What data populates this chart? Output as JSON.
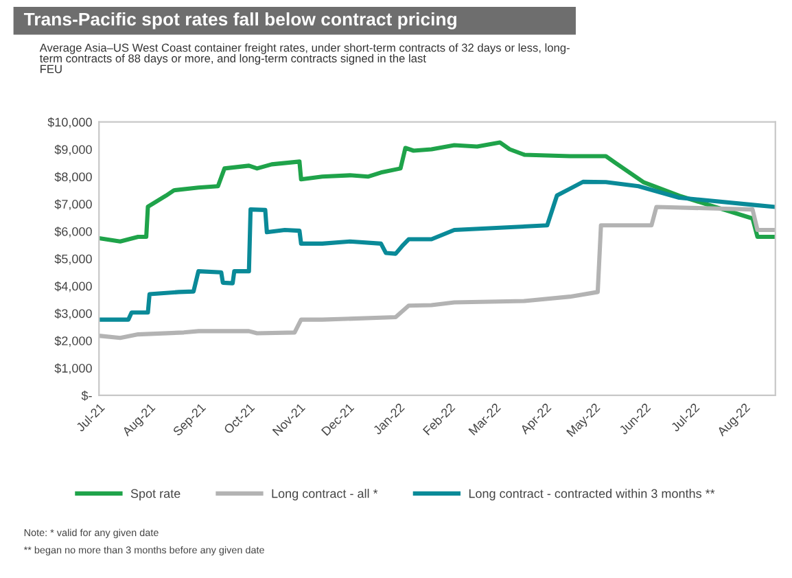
{
  "chart_data": {
    "type": "line",
    "title": "Trans-Pacific spot rates fall below contract pricing",
    "subtitle": "Average Asia–US West Coast container freight rates, under short-term contracts of 32 days or less, long-\nterm contracts of 88 days or more, and long-term contracts signed in the last\nFEU",
    "annotations": [
      "Note: * valid for any given date",
      "** began no more than 3 months before any given date"
    ],
    "legend": "bottom",
    "grid": false,
    "xlim": [
      "2021-07-01",
      "2022-08-20"
    ],
    "xticks": [
      {
        "value": "2021-07-01",
        "label": "Jul-21"
      },
      {
        "value": "2021-08-01",
        "label": "Aug-21"
      },
      {
        "value": "2021-09-01",
        "label": "Sep-21"
      },
      {
        "value": "2021-10-01",
        "label": "Oct-21"
      },
      {
        "value": "2021-11-01",
        "label": "Nov-21"
      },
      {
        "value": "2021-12-01",
        "label": "Dec-21"
      },
      {
        "value": "2022-01-01",
        "label": "Jan-22"
      },
      {
        "value": "2022-02-01",
        "label": "Feb-22"
      },
      {
        "value": "2022-03-01",
        "label": "Mar-22"
      },
      {
        "value": "2022-04-01",
        "label": "Apr-22"
      },
      {
        "value": "2022-05-01",
        "label": "May-22"
      },
      {
        "value": "2022-06-01",
        "label": "Jun-22"
      },
      {
        "value": "2022-07-01",
        "label": "Jul-22"
      },
      {
        "value": "2022-08-01",
        "label": "Aug-22"
      }
    ],
    "ylim": [
      0,
      10000
    ],
    "yticks": [
      {
        "value": 0,
        "label": "$-"
      },
      {
        "value": 1000,
        "label": "$1,000"
      },
      {
        "value": 2000,
        "label": "$2,000"
      },
      {
        "value": 3000,
        "label": "$3,000"
      },
      {
        "value": 4000,
        "label": "$4,000"
      },
      {
        "value": 5000,
        "label": "$5,000"
      },
      {
        "value": 6000,
        "label": "$6,000"
      },
      {
        "value": 7000,
        "label": "$7,000"
      },
      {
        "value": 8000,
        "label": "$8,000"
      },
      {
        "value": 9000,
        "label": "$9,000"
      },
      {
        "value": 10000,
        "label": "$10,000"
      }
    ],
    "series": [
      {
        "name": "Spot rate",
        "color": "#1fa34a",
        "x": [
          "2021-07-01",
          "2021-07-14",
          "2021-07-25",
          "2021-07-30",
          "2021-07-31",
          "2021-08-11",
          "2021-08-16",
          "2021-08-31",
          "2021-09-12",
          "2021-09-16",
          "2021-10-01",
          "2021-10-06",
          "2021-10-15",
          "2021-11-01",
          "2021-11-02",
          "2021-11-15",
          "2021-12-02",
          "2021-12-13",
          "2021-12-21",
          "2022-01-02",
          "2022-01-05",
          "2022-01-10",
          "2022-01-21",
          "2022-02-04",
          "2022-02-18",
          "2022-03-04",
          "2022-03-10",
          "2022-03-19",
          "2022-04-16",
          "2022-05-08",
          "2022-05-14",
          "2022-05-31",
          "2022-06-22",
          "2022-08-06",
          "2022-08-09",
          "2022-08-20"
        ],
        "values": [
          5750,
          5630,
          5800,
          5800,
          6900,
          7300,
          7500,
          7600,
          7650,
          8300,
          8400,
          8300,
          8450,
          8550,
          7900,
          8000,
          8050,
          8000,
          8150,
          8300,
          9050,
          8950,
          9000,
          9150,
          9100,
          9250,
          9000,
          8800,
          8750,
          8750,
          8500,
          7800,
          7300,
          6470,
          5800,
          5800
        ]
      },
      {
        "name": "Long contract - all *",
        "color": "#b3b3b3",
        "x": [
          "2021-07-01",
          "2021-07-14",
          "2021-07-25",
          "2021-08-22",
          "2021-08-31",
          "2021-10-01",
          "2021-10-06",
          "2021-10-29",
          "2021-11-02",
          "2021-11-15",
          "2021-12-30",
          "2022-01-07",
          "2022-01-21",
          "2022-02-04",
          "2022-03-19",
          "2022-04-16",
          "2022-05-03",
          "2022-05-05",
          "2022-06-05",
          "2022-06-08",
          "2022-08-06",
          "2022-08-09",
          "2022-08-20"
        ],
        "values": [
          2180,
          2100,
          2230,
          2300,
          2350,
          2350,
          2270,
          2300,
          2770,
          2770,
          2860,
          3280,
          3300,
          3400,
          3450,
          3610,
          3780,
          6220,
          6220,
          6890,
          6800,
          6050,
          6050
        ]
      },
      {
        "name": "Long contract - contracted within 3 months **",
        "color": "#0a8a98",
        "x": [
          "2021-07-01",
          "2021-07-19",
          "2021-07-21",
          "2021-07-31",
          "2021-08-01",
          "2021-08-19",
          "2021-08-28",
          "2021-08-31",
          "2021-09-14",
          "2021-09-15",
          "2021-09-21",
          "2021-09-22",
          "2021-10-01",
          "2021-10-02",
          "2021-10-11",
          "2021-10-12",
          "2021-10-23",
          "2021-11-01",
          "2021-11-02",
          "2021-11-15",
          "2021-12-02",
          "2021-12-21",
          "2021-12-24",
          "2021-12-30",
          "2022-01-03",
          "2022-01-07",
          "2022-01-21",
          "2022-02-04",
          "2022-03-04",
          "2022-04-02",
          "2022-04-08",
          "2022-04-16",
          "2022-04-24",
          "2022-05-08",
          "2022-05-28",
          "2022-06-22",
          "2022-08-06",
          "2022-08-20"
        ],
        "values": [
          2770,
          2770,
          3030,
          3030,
          3700,
          3780,
          3800,
          4540,
          4500,
          4120,
          4100,
          4540,
          4540,
          6800,
          6780,
          5970,
          6050,
          6020,
          5550,
          5550,
          5630,
          5550,
          5210,
          5180,
          5460,
          5710,
          5710,
          6050,
          6130,
          6220,
          7310,
          7560,
          7810,
          7800,
          7650,
          7230,
          6970,
          6890
        ]
      }
    ]
  }
}
